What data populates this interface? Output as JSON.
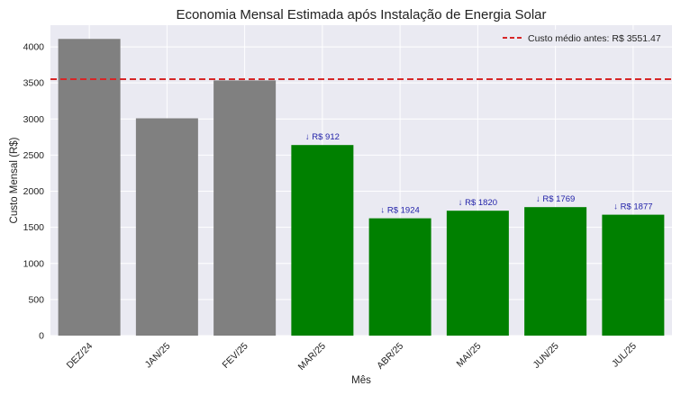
{
  "chart_data": {
    "type": "bar",
    "title": "Economia Mensal Estimada após Instalação de Energia Solar",
    "xlabel": "Mês",
    "ylabel": "Custo Mensal (R$)",
    "categories": [
      "DEZ/24",
      "JAN/25",
      "FEV/25",
      "MAR/25",
      "ABR/25",
      "MAI/25",
      "JUN/25",
      "JUL/25"
    ],
    "values": [
      4110,
      3010,
      3535,
      2640,
      1625,
      1730,
      1780,
      1675
    ],
    "bar_colors": [
      "#808080",
      "#808080",
      "#808080",
      "#008000",
      "#008000",
      "#008000",
      "#008000",
      "#008000"
    ],
    "annotations": [
      "",
      "",
      "",
      "↓ R$ 912",
      "↓ R$ 1924",
      "↓ R$ 1820",
      "↓ R$ 1769",
      "↓ R$ 1877"
    ],
    "annotation_color": "#1f1fa8",
    "ylim": [
      0,
      4300
    ],
    "yticks": [
      0,
      500,
      1000,
      1500,
      2000,
      2500,
      3000,
      3500,
      4000
    ],
    "reference_line": {
      "value": 3551.47,
      "label": "Custo médio antes: R$ 3551.47",
      "color": "#d62728",
      "style": "dashed"
    },
    "legend_position": "top-right",
    "grid": true,
    "background_color": "#eaeaf2"
  }
}
